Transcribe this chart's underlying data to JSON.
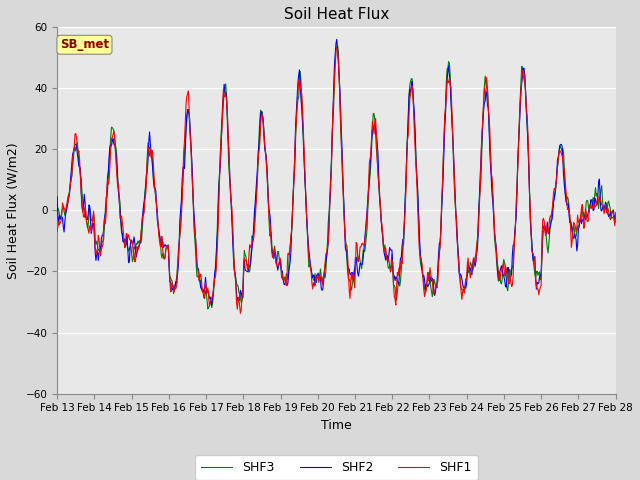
{
  "title": "Soil Heat Flux",
  "ylabel": "Soil Heat Flux (W/m2)",
  "xlabel": "Time",
  "ylim": [
    -60,
    60
  ],
  "yticks": [
    -60,
    -40,
    -20,
    0,
    20,
    40,
    60
  ],
  "colors": {
    "SHF1": "red",
    "SHF2": "blue",
    "SHF3": "green"
  },
  "linewidth": 0.8,
  "background_color": "#d9d9d9",
  "plot_bg_color": "#e8e8e8",
  "annotation_text": "SB_met",
  "annotation_color": "#8b0000",
  "annotation_bg": "#ffff99",
  "tick_labels": [
    "Feb 13",
    "Feb 14",
    "Feb 15",
    "Feb 16",
    "Feb 17",
    "Feb 18",
    "Feb 19",
    "Feb 20",
    "Feb 21",
    "Feb 22",
    "Feb 23",
    "Feb 24",
    "Feb 25",
    "Feb 26",
    "Feb 27",
    "Feb 28"
  ],
  "title_fontsize": 11,
  "label_fontsize": 9,
  "tick_fontsize": 7.5,
  "legend_fontsize": 9
}
